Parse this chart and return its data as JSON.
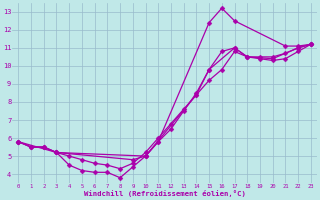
{
  "xlabel": "Windchill (Refroidissement éolien,°C)",
  "bg_color": "#c0e8e8",
  "line_color": "#aa00aa",
  "grid_color": "#99bbcc",
  "xlim": [
    -0.5,
    23.5
  ],
  "ylim": [
    3.5,
    13.5
  ],
  "xticks": [
    0,
    1,
    2,
    3,
    4,
    5,
    6,
    7,
    8,
    9,
    10,
    11,
    12,
    13,
    14,
    15,
    16,
    17,
    18,
    19,
    20,
    21,
    22,
    23
  ],
  "yticks": [
    4,
    5,
    6,
    7,
    8,
    9,
    10,
    11,
    12,
    13
  ],
  "curves": [
    {
      "x": [
        0,
        1,
        2,
        3,
        4,
        5,
        6,
        7,
        8,
        9,
        10,
        11,
        15,
        16,
        17,
        21,
        22,
        23
      ],
      "y": [
        5.8,
        5.5,
        5.5,
        5.2,
        4.5,
        4.2,
        4.1,
        4.1,
        3.8,
        4.4,
        5.0,
        5.8,
        12.4,
        13.2,
        12.5,
        11.1,
        11.1,
        11.2
      ]
    },
    {
      "x": [
        0,
        1,
        2,
        3,
        4,
        5,
        6,
        7,
        8,
        9,
        10,
        11,
        12,
        13,
        14,
        15,
        16,
        17,
        18,
        19,
        20,
        21,
        22,
        23
      ],
      "y": [
        5.8,
        5.5,
        5.5,
        5.2,
        5.0,
        4.8,
        4.6,
        4.5,
        4.3,
        4.6,
        5.2,
        6.0,
        6.8,
        7.6,
        8.4,
        9.2,
        9.8,
        10.8,
        10.5,
        10.5,
        10.5,
        10.7,
        11.0,
        11.2
      ]
    },
    {
      "x": [
        0,
        1,
        2,
        3,
        10,
        11,
        12,
        13,
        14,
        15,
        17,
        18,
        19,
        20,
        21,
        22,
        23
      ],
      "y": [
        5.8,
        5.5,
        5.5,
        5.2,
        5.0,
        5.8,
        6.5,
        7.5,
        8.5,
        9.8,
        11.0,
        10.5,
        10.4,
        10.3,
        10.4,
        10.8,
        11.2
      ]
    },
    {
      "x": [
        0,
        3,
        9,
        10,
        14,
        15,
        16,
        17,
        18,
        20,
        22,
        23
      ],
      "y": [
        5.8,
        5.2,
        4.8,
        5.0,
        8.4,
        9.8,
        10.8,
        11.0,
        10.5,
        10.4,
        11.0,
        11.2
      ]
    }
  ],
  "marker": "D",
  "markersize": 2.5,
  "linewidth": 0.9
}
